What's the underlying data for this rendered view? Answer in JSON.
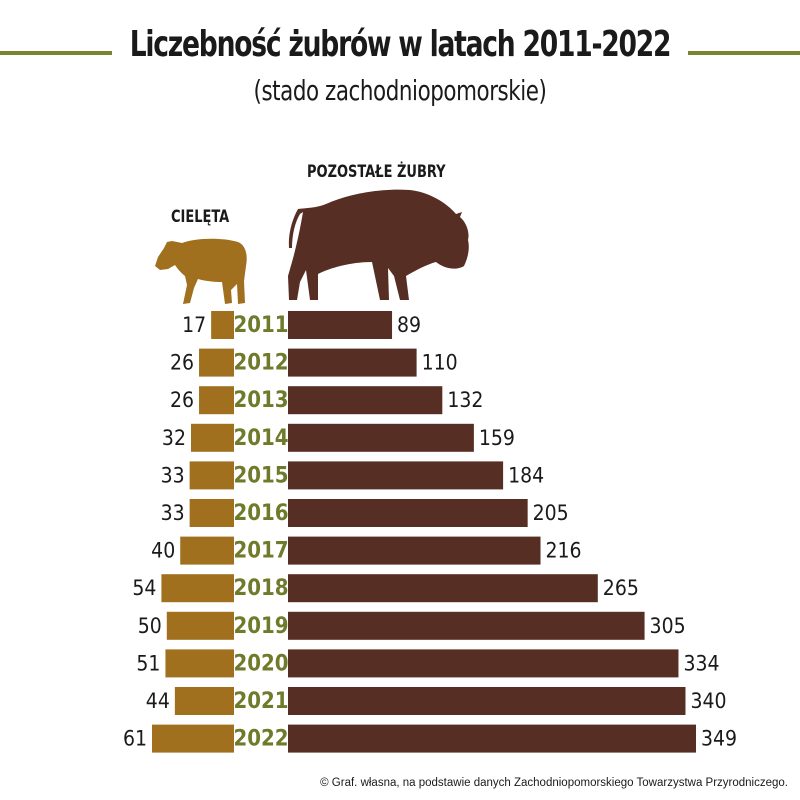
{
  "header": {
    "title": "Liczebność żubrów w latach 2011-2022",
    "subtitle": "(stado zachodniopomorskie)"
  },
  "footer": {
    "source": "© Graf. własna, na podstawie danych Zachodniopomorskiego Towarzystwa Przyrodniczego."
  },
  "colors": {
    "calves": "#a0701e",
    "others": "#562e24",
    "year": "#6f7a2b",
    "rule": "#7c8431",
    "text": "#1a1a1a"
  },
  "icons": [
    "calf-icon",
    "bison-icon"
  ],
  "chart_data": {
    "type": "bar",
    "orientation": "horizontal",
    "categories": [
      "2011",
      "2012",
      "2013",
      "2014",
      "2015",
      "2016",
      "2017",
      "2018",
      "2019",
      "2020",
      "2021",
      "2022"
    ],
    "series": [
      {
        "name": "CIELĘTA",
        "values": [
          17,
          26,
          26,
          32,
          33,
          33,
          40,
          54,
          50,
          51,
          44,
          61
        ]
      },
      {
        "name": "POZOSTAŁE ŻUBRY",
        "values": [
          89,
          110,
          132,
          159,
          184,
          205,
          216,
          265,
          305,
          334,
          340,
          349
        ]
      }
    ],
    "title": "Liczebność żubrów w latach 2011-2022",
    "subtitle": "(stado zachodniopomorskie)",
    "data_labels": true,
    "grid": false
  }
}
